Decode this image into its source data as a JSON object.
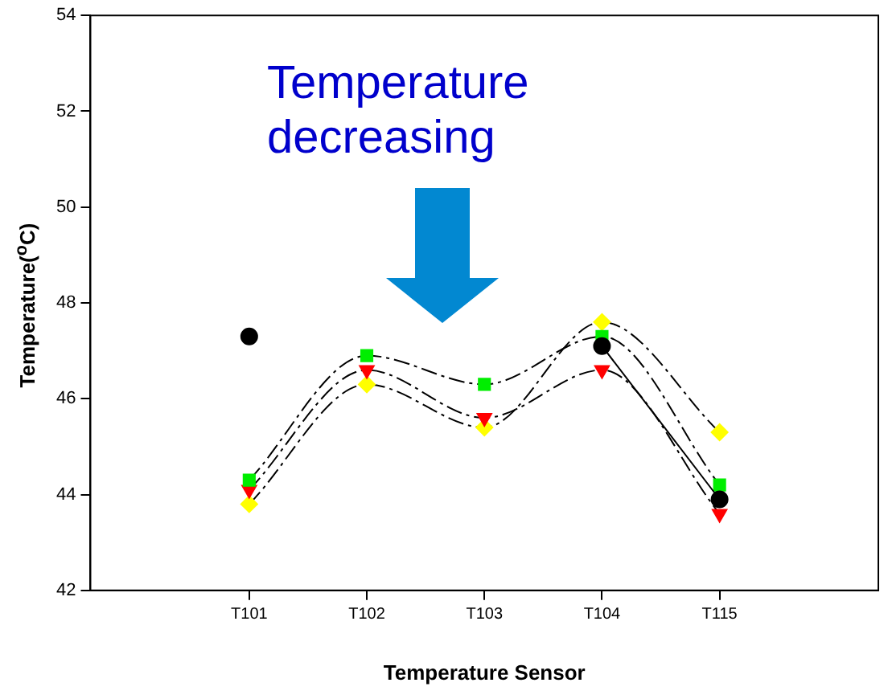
{
  "chart_data": {
    "type": "line",
    "xlabel": "Temperature Sensor",
    "ylabel": "Temperature($^{o}$C)",
    "categories": [
      "T101",
      "T102",
      "T103",
      "T104",
      "T115"
    ],
    "ylim": [
      42,
      54
    ],
    "yticks": [
      42,
      44,
      46,
      48,
      50,
      52,
      54
    ],
    "grid": false,
    "legend": false,
    "annotations": [
      "Temperature decreasing"
    ],
    "series": [
      {
        "color": "#000000",
        "marker": "circle",
        "line_style": "solid",
        "values": [
          47.3,
          null,
          null,
          47.1,
          43.9
        ]
      },
      {
        "color": "#00ee00",
        "marker": "square",
        "line_style": "dashed",
        "values": [
          44.3,
          46.9,
          46.3,
          47.3,
          44.2
        ]
      },
      {
        "color": "#ff0000",
        "marker": "triangle",
        "line_style": "dashed",
        "values": [
          44.1,
          46.6,
          45.6,
          46.6,
          43.6
        ]
      },
      {
        "color": "#ffff00",
        "marker": "diamond",
        "line_style": "dashed",
        "values": [
          43.8,
          46.3,
          45.4,
          47.6,
          45.3
        ]
      }
    ]
  }
}
